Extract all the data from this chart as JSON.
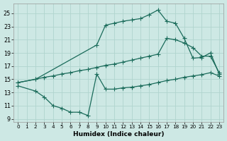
{
  "xlabel": "Humidex (Indice chaleur)",
  "bg_color": "#cde8e4",
  "grid_color": "#b0d4ce",
  "line_color": "#1a6b5a",
  "xlim": [
    -0.5,
    23.5
  ],
  "ylim": [
    8.5,
    26.5
  ],
  "xticks": [
    0,
    1,
    2,
    3,
    4,
    5,
    6,
    7,
    8,
    9,
    10,
    11,
    12,
    13,
    14,
    15,
    16,
    17,
    18,
    19,
    20,
    21,
    22,
    23
  ],
  "yticks": [
    9,
    11,
    13,
    15,
    17,
    19,
    21,
    23,
    25
  ],
  "line1_x": [
    0,
    2,
    9,
    10,
    11,
    12,
    13,
    14,
    15,
    16,
    17,
    18,
    19,
    20,
    21,
    22,
    23
  ],
  "line1_y": [
    14.5,
    15.0,
    20.2,
    23.2,
    23.5,
    23.8,
    24.0,
    24.2,
    24.8,
    25.5,
    23.8,
    23.5,
    21.2,
    18.2,
    18.3,
    19.0,
    15.8
  ],
  "line2_x": [
    0,
    2,
    3,
    4,
    5,
    6,
    7,
    8,
    9,
    10,
    11,
    12,
    13,
    14,
    15,
    16,
    17,
    18,
    19,
    20,
    21,
    22,
    23
  ],
  "line2_y": [
    14.5,
    15.0,
    15.3,
    15.5,
    15.8,
    16.0,
    16.3,
    16.5,
    16.8,
    17.1,
    17.3,
    17.6,
    17.9,
    18.2,
    18.5,
    18.8,
    21.2,
    21.0,
    20.5,
    19.8,
    18.5,
    18.5,
    16.0
  ],
  "line3_x": [
    0,
    2,
    3,
    4,
    5,
    6,
    7,
    8,
    9,
    10,
    11,
    12,
    13,
    14,
    15,
    16,
    17,
    18,
    19,
    20,
    21,
    22,
    23
  ],
  "line3_y": [
    14.0,
    13.2,
    12.3,
    11.0,
    10.6,
    10.0,
    10.0,
    9.5,
    15.8,
    13.5,
    13.5,
    13.7,
    13.8,
    14.0,
    14.2,
    14.5,
    14.8,
    15.0,
    15.3,
    15.5,
    15.7,
    16.0,
    15.5
  ]
}
